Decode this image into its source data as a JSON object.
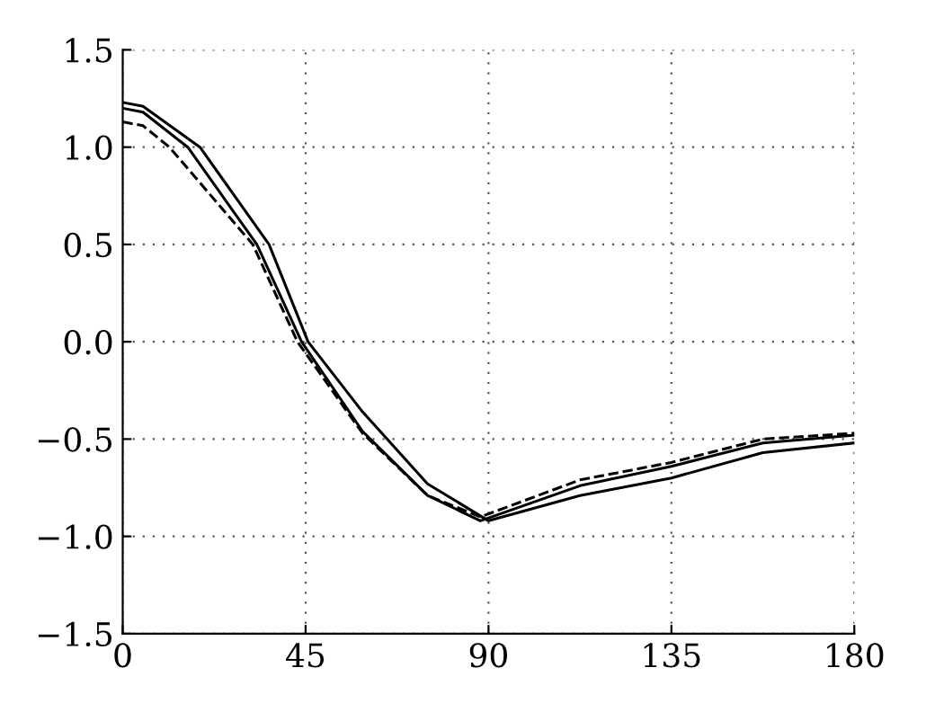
{
  "chart_data": {
    "type": "line",
    "xlim": [
      0,
      180
    ],
    "ylim": [
      -1.5,
      1.5
    ],
    "xticks": [
      0,
      45,
      90,
      135,
      180
    ],
    "yticks": [
      {
        "value": -1.5,
        "label": "−1.5"
      },
      {
        "value": -1.0,
        "label": "−1.0"
      },
      {
        "value": -0.5,
        "label": "−0.5"
      },
      {
        "value": 0.0,
        "label": "0.0"
      },
      {
        "value": 0.5,
        "label": "0.5"
      },
      {
        "value": 1.0,
        "label": "1.0"
      },
      {
        "value": 1.5,
        "label": "1.5"
      }
    ],
    "grid": true,
    "marker": "none",
    "series": [
      {
        "color": "#000000",
        "line_style": "solid",
        "x": [
          0,
          5,
          19,
          36,
          45.6,
          59,
          75,
          90,
          112.5,
          135,
          157.5,
          180
        ],
        "values": [
          1.23,
          1.21,
          1.0,
          0.5,
          0,
          -0.36,
          -0.73,
          -0.92,
          -0.79,
          -0.7,
          -0.57,
          -0.52
        ]
      },
      {
        "color": "#000000",
        "line_style": "solid",
        "x": [
          0,
          5,
          16,
          33,
          44,
          59,
          75,
          88,
          112.5,
          135,
          157.5,
          180
        ],
        "values": [
          1.2,
          1.18,
          1.0,
          0.5,
          0,
          -0.46,
          -0.79,
          -0.92,
          -0.74,
          -0.64,
          -0.52,
          -0.48
        ]
      },
      {
        "color": "#000000",
        "line_style": "dashed",
        "x": [
          0,
          5,
          11.5,
          32,
          43,
          59,
          75,
          88,
          112.5,
          135,
          157.5,
          180
        ],
        "values": [
          1.13,
          1.11,
          1.0,
          0.5,
          0,
          -0.47,
          -0.79,
          -0.9,
          -0.71,
          -0.62,
          -0.5,
          -0.47
        ]
      }
    ]
  }
}
